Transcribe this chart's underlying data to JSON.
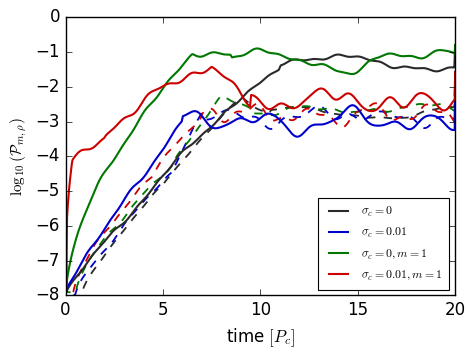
{
  "xlabel": "time $[P_c]$",
  "ylabel": "$\\log_{10}(\\mathcal{P}_{m,\\rho})$",
  "xlim": [
    0,
    20
  ],
  "ylim": [
    -8,
    0
  ],
  "legend_entries": [
    {
      "label": "$\\sigma_c =0$",
      "color": "#2a2a2a"
    },
    {
      "label": "$\\sigma_c =0.01$",
      "color": "#0000cc"
    },
    {
      "label": "$\\sigma_c =0, m=1$",
      "color": "#007700"
    },
    {
      "label": "$\\sigma_c =0.01, m=1$",
      "color": "#cc0000"
    }
  ],
  "background": "#ffffff",
  "seed": 42
}
